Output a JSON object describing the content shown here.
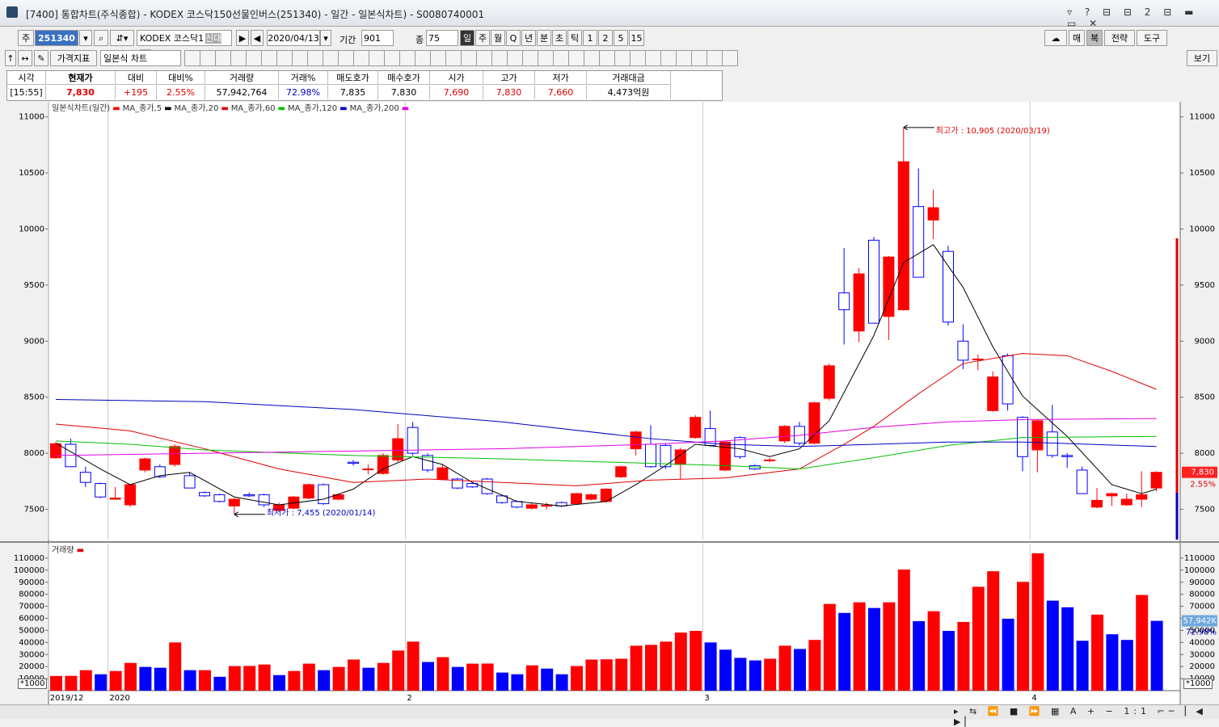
{
  "window": {
    "title": "[7400] 통합차트(주식종합) - KODEX 코스닥150선물인버스(251340) - 일간 - 일본식차트) - S0080740001"
  },
  "toolbar": {
    "market": "주",
    "code": "251340",
    "name": "KODEX 코스닥1",
    "tag": "신대40",
    "date": "2020/04/13",
    "period_label": "기간",
    "period": "901",
    "count_label": "종",
    "count": "75",
    "intervals": [
      "일",
      "주",
      "월",
      "Q",
      "년",
      "분",
      "초",
      "틱",
      "1",
      "2",
      "5",
      "15"
    ],
    "right": [
      "매",
      "복",
      "전략",
      "도구"
    ],
    "indicator": "가격지표",
    "chart_type": "일본식 차트",
    "view": "보기"
  },
  "quote": {
    "headers": [
      "시각",
      "현재가",
      "대비",
      "대비%",
      "거래량",
      "거래%",
      "매도호가",
      "매수호가",
      "시가",
      "고가",
      "저가",
      "거래대금"
    ],
    "values": [
      "[15:55]",
      "7,830",
      "+195",
      "2.55%",
      "57,942,764",
      "72.98%",
      "7,835",
      "7,830",
      "7,690",
      "7,830",
      "7,660",
      "4,473억원"
    ]
  },
  "chart_data": [
    {
      "type": "candlestick",
      "legend_title": "일본식차트(일간)",
      "up_color": "#ff0000",
      "down_color": "#0000ff",
      "open": [
        7960,
        8080,
        7830,
        7730,
        7590,
        7540,
        7850,
        7880,
        7900,
        7800,
        7650,
        7630,
        7530,
        7630,
        7630,
        7490,
        7510,
        7600,
        7720,
        7590,
        7920,
        7860,
        7820,
        7940,
        8230,
        7980,
        7770,
        7770,
        7730,
        7770,
        7620,
        7570,
        7510,
        7535,
        7560,
        7550,
        7590,
        7570,
        7790,
        8040,
        8080,
        8070,
        7900,
        8140,
        8220,
        7850,
        8140,
        7890,
        7940,
        8110,
        8240,
        8090,
        8490,
        9430,
        9090,
        9900,
        9220,
        9280,
        10200,
        10080,
        9800,
        9000,
        8840,
        8380,
        8870,
        8320,
        8030,
        8190,
        7980,
        7850,
        7520,
        7620,
        7540,
        7590,
        7690
      ],
      "high": [
        8100,
        8130,
        7880,
        7740,
        7700,
        7720,
        7960,
        7900,
        8080,
        7830,
        7660,
        7640,
        7600,
        7650,
        7640,
        7560,
        7620,
        7730,
        7730,
        7640,
        7940,
        7900,
        8000,
        8260,
        8280,
        8000,
        7900,
        7780,
        7740,
        7780,
        7630,
        7580,
        7560,
        7560,
        7570,
        7650,
        7640,
        7690,
        7890,
        8200,
        8250,
        8090,
        8050,
        8340,
        8380,
        8110,
        8150,
        7900,
        7960,
        8250,
        8280,
        8460,
        8800,
        9830,
        9650,
        9930,
        9760,
        10905,
        10540,
        10350,
        9850,
        9150,
        8880,
        8730,
        8890,
        8330,
        8300,
        8430,
        8000,
        7880,
        7690,
        7650,
        7640,
        7840,
        7840
      ],
      "low": [
        7950,
        7880,
        7700,
        7600,
        7590,
        7520,
        7830,
        7780,
        7880,
        7690,
        7610,
        7560,
        7455,
        7610,
        7520,
        7480,
        7500,
        7590,
        7540,
        7580,
        7890,
        7810,
        7810,
        7920,
        7980,
        7830,
        7760,
        7680,
        7690,
        7630,
        7550,
        7510,
        7500,
        7500,
        7520,
        7540,
        7580,
        7560,
        7780,
        7980,
        7870,
        7860,
        7770,
        8130,
        8060,
        7840,
        7950,
        7850,
        7920,
        8090,
        8070,
        8080,
        8470,
        8970,
        8990,
        9160,
        9010,
        9270,
        9570,
        9910,
        9140,
        8750,
        8740,
        8370,
        8380,
        7840,
        7830,
        7960,
        7870,
        7640,
        7510,
        7530,
        7530,
        7520,
        7660
      ],
      "close": [
        8085,
        7880,
        7740,
        7610,
        7600,
        7720,
        7950,
        7790,
        8060,
        7690,
        7620,
        7570,
        7590,
        7620,
        7540,
        7540,
        7610,
        7720,
        7550,
        7630,
        7910,
        7860,
        7980,
        8130,
        8000,
        7850,
        7870,
        7690,
        7700,
        7640,
        7560,
        7520,
        7540,
        7535,
        7530,
        7640,
        7630,
        7680,
        7880,
        8190,
        7880,
        7880,
        8030,
        8320,
        8070,
        8100,
        7970,
        7860,
        7940,
        8240,
        8090,
        8450,
        8780,
        9280,
        9600,
        9160,
        9750,
        10600,
        9570,
        10190,
        9170,
        8830,
        8840,
        8680,
        8440,
        7970,
        8290,
        7980,
        7970,
        7640,
        7580,
        7640,
        7590,
        7630,
        7830
      ],
      "xticks": [
        {
          "value": 0,
          "label": "2019/12"
        },
        {
          "value": 4,
          "label": "2020"
        },
        {
          "value": 24,
          "label": "2"
        },
        {
          "value": 44,
          "label": "3"
        },
        {
          "value": 66,
          "label": "4"
        }
      ],
      "ylim": [
        7230,
        11120
      ],
      "yticks": [
        7500,
        8000,
        8500,
        9000,
        9500,
        10000,
        10500,
        11000
      ],
      "series": [
        {
          "name": "MA_종가,5",
          "color": "#000000",
          "x": [
            0,
            3,
            5,
            7,
            9,
            12,
            15,
            18,
            20,
            22,
            24,
            26,
            28,
            31,
            34,
            37,
            39,
            41,
            43,
            46,
            48,
            50,
            52,
            55,
            57,
            59,
            61,
            63,
            65,
            68,
            71,
            73,
            74
          ],
          "values": [
            8090,
            7860,
            7720,
            7800,
            7830,
            7610,
            7540,
            7590,
            7680,
            7860,
            7970,
            7900,
            7740,
            7570,
            7530,
            7570,
            7720,
            7890,
            8080,
            8040,
            7970,
            8040,
            8290,
            9050,
            9700,
            9860,
            9480,
            8950,
            8510,
            8150,
            7720,
            7640,
            7680
          ]
        },
        {
          "name": "MA_종가,20",
          "color": "#e00000",
          "x": [
            0,
            5,
            10,
            15,
            20,
            25,
            30,
            35,
            40,
            45,
            50,
            53,
            55,
            58,
            61,
            65,
            68,
            71,
            74
          ],
          "values": [
            8260,
            8200,
            8040,
            7860,
            7740,
            7770,
            7740,
            7710,
            7760,
            7780,
            7860,
            8080,
            8240,
            8530,
            8800,
            8890,
            8870,
            8730,
            8570
          ]
        },
        {
          "name": "MA_종가,60",
          "color": "#00c000",
          "x": [
            0,
            5,
            10,
            20,
            30,
            40,
            45,
            50,
            55,
            60,
            65,
            74
          ],
          "values": [
            8110,
            8080,
            8030,
            7980,
            7950,
            7910,
            7890,
            7860,
            7960,
            8070,
            8140,
            8150
          ]
        },
        {
          "name": "MA_종가,120",
          "color": "#0000c0",
          "x": [
            0,
            10,
            20,
            30,
            40,
            45,
            50,
            60,
            65,
            74
          ],
          "values": [
            8480,
            8460,
            8390,
            8280,
            8130,
            8080,
            8060,
            8100,
            8100,
            8060
          ]
        },
        {
          "name": "MA_종가,200",
          "color": "#e000e0",
          "x": [
            0,
            10,
            20,
            30,
            40,
            45,
            50,
            55,
            60,
            65,
            74
          ],
          "values": [
            7980,
            8000,
            8020,
            8040,
            8080,
            8110,
            8160,
            8230,
            8280,
            8300,
            8310
          ]
        }
      ],
      "annotations": [
        {
          "text": "최고가 : 10,905 (2020/03/19)",
          "x": 57,
          "value": 10905,
          "color": "#e00000"
        },
        {
          "text": "최저가 : 7,455 (2020/01/14)",
          "x": 12,
          "value": 7455,
          "color": "#0000c0"
        }
      ],
      "last_price": {
        "value": 7830,
        "label": "7,830"
      },
      "last_change": "2.55%"
    },
    {
      "type": "bar",
      "title": "거래량",
      "color_up": "#ff0000",
      "color_down": "#0000ff",
      "values": [
        12200,
        12300,
        17000,
        13600,
        16300,
        23000,
        19700,
        19000,
        40000,
        17000,
        17000,
        11500,
        20400,
        20500,
        21700,
        12900,
        16300,
        22400,
        17000,
        19700,
        25800,
        19000,
        23000,
        33300,
        40700,
        23800,
        27800,
        19700,
        22400,
        22500,
        15000,
        13600,
        21000,
        18300,
        13600,
        20400,
        25800,
        26000,
        26500,
        37300,
        38000,
        40700,
        48200,
        49600,
        40000,
        34000,
        27200,
        25100,
        26500,
        37300,
        34600,
        42100,
        72000,
        64500,
        73300,
        68600,
        73300,
        100500,
        57700,
        65900,
        49600,
        57000,
        86200,
        99100,
        59700,
        90300,
        114000,
        74700,
        69200,
        41400,
        63100,
        46800,
        42100,
        79400,
        57942
      ],
      "xticks": [
        {
          "value": 0,
          "label": "2019/12"
        },
        {
          "value": 4,
          "label": "2020"
        },
        {
          "value": 24,
          "label": "2"
        },
        {
          "value": 44,
          "label": "3"
        },
        {
          "value": 66,
          "label": "4"
        }
      ],
      "ylim": [
        0,
        120000
      ],
      "yticks": [
        10000,
        20000,
        30000,
        40000,
        50000,
        60000,
        70000,
        80000,
        90000,
        100000,
        110000
      ],
      "unit_label": "*1000",
      "last_label": "57,942K",
      "ratio_label": "72.98%"
    }
  ]
}
